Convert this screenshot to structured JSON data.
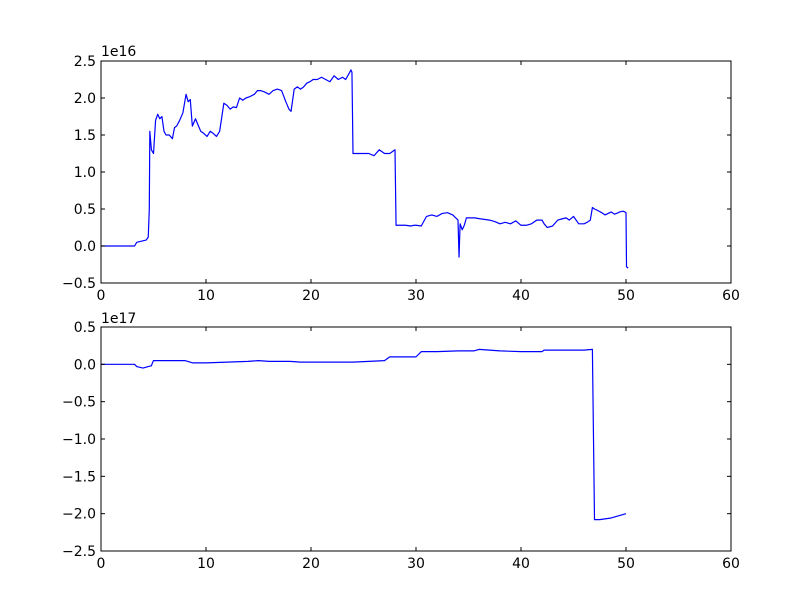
{
  "chart_data": [
    {
      "type": "line",
      "title": "",
      "xlabel": "",
      "ylabel": "",
      "offset_label": "1e16",
      "xlim": [
        0,
        60
      ],
      "ylim": [
        -0.5,
        2.5
      ],
      "x_ticks": [
        0,
        10,
        20,
        30,
        40,
        50,
        60
      ],
      "x_tick_labels": [
        "0",
        "10",
        "20",
        "30",
        "40",
        "50",
        "60"
      ],
      "y_ticks": [
        -0.5,
        0.0,
        0.5,
        1.0,
        1.5,
        2.0,
        2.5
      ],
      "y_tick_labels": [
        "−0.5",
        "0.0",
        "0.5",
        "1.0",
        "1.5",
        "2.0",
        "2.5"
      ],
      "grid": false,
      "series": [
        {
          "color": "#0000ff",
          "x": [
            0,
            3.2,
            3.4,
            4.0,
            4.3,
            4.5,
            4.6,
            4.65,
            4.8,
            5.0,
            5.2,
            5.4,
            5.6,
            5.8,
            6.0,
            6.2,
            6.5,
            6.8,
            7.0,
            7.2,
            7.5,
            7.8,
            8.1,
            8.3,
            8.5,
            8.7,
            9.0,
            9.2,
            9.5,
            9.8,
            10.1,
            10.4,
            10.7,
            11.0,
            11.3,
            11.7,
            12.0,
            12.3,
            12.6,
            12.9,
            13.2,
            13.5,
            13.8,
            14.2,
            14.6,
            14.9,
            15.2,
            15.6,
            16.0,
            16.4,
            16.8,
            17.2,
            17.6,
            17.9,
            18.1,
            18.4,
            18.7,
            19.0,
            19.3,
            19.6,
            19.9,
            20.2,
            20.6,
            21.0,
            21.4,
            21.8,
            22.2,
            22.6,
            23.0,
            23.3,
            23.5,
            23.7,
            23.8,
            23.9,
            24.0,
            24.1,
            25.0,
            25.5,
            26.0,
            26.5,
            27.0,
            27.5,
            27.8,
            28.0,
            28.1,
            28.5,
            29.0,
            29.5,
            29.8,
            30.0,
            30.5,
            31.0,
            31.5,
            32.0,
            32.5,
            33.0,
            33.5,
            34.0,
            34.1,
            34.2,
            34.4,
            34.6,
            34.8,
            35.0,
            35.3,
            35.6,
            36.0,
            36.5,
            37.0,
            37.5,
            38.0,
            38.5,
            39.0,
            39.5,
            40.0,
            40.5,
            41.0,
            41.5,
            42.0,
            42.2,
            42.5,
            43.0,
            43.5,
            44.0,
            44.3,
            44.6,
            45.0,
            45.5,
            46.0,
            46.3,
            46.6,
            46.8,
            47.0,
            47.3,
            47.7,
            48.0,
            48.3,
            48.6,
            48.9,
            49.1,
            49.4,
            49.7,
            49.9,
            50.0,
            50.05,
            50.2
          ],
          "y": [
            0.0,
            0.0,
            0.05,
            0.07,
            0.08,
            0.12,
            0.5,
            1.55,
            1.3,
            1.25,
            1.7,
            1.78,
            1.72,
            1.75,
            1.55,
            1.5,
            1.5,
            1.45,
            1.6,
            1.62,
            1.7,
            1.8,
            2.05,
            1.95,
            1.98,
            1.62,
            1.72,
            1.65,
            1.55,
            1.52,
            1.48,
            1.55,
            1.52,
            1.48,
            1.55,
            1.93,
            1.9,
            1.85,
            1.88,
            1.87,
            2.0,
            1.97,
            2.0,
            2.02,
            2.05,
            2.1,
            2.1,
            2.08,
            2.05,
            2.1,
            2.12,
            2.1,
            1.95,
            1.85,
            1.82,
            2.12,
            2.15,
            2.12,
            2.15,
            2.2,
            2.22,
            2.25,
            2.25,
            2.28,
            2.25,
            2.22,
            2.3,
            2.25,
            2.28,
            2.25,
            2.3,
            2.35,
            2.38,
            2.35,
            1.25,
            1.25,
            1.25,
            1.25,
            1.22,
            1.3,
            1.25,
            1.25,
            1.28,
            1.3,
            0.28,
            0.28,
            0.28,
            0.27,
            0.28,
            0.28,
            0.27,
            0.4,
            0.42,
            0.4,
            0.44,
            0.45,
            0.42,
            0.35,
            -0.15,
            0.3,
            0.22,
            0.28,
            0.38,
            0.38,
            0.38,
            0.38,
            0.37,
            0.36,
            0.35,
            0.33,
            0.3,
            0.32,
            0.3,
            0.34,
            0.28,
            0.28,
            0.3,
            0.35,
            0.35,
            0.3,
            0.25,
            0.27,
            0.35,
            0.37,
            0.38,
            0.35,
            0.4,
            0.3,
            0.3,
            0.32,
            0.35,
            0.52,
            0.5,
            0.48,
            0.45,
            0.42,
            0.44,
            0.46,
            0.43,
            0.44,
            0.46,
            0.47,
            0.46,
            0.45,
            -0.28,
            -0.3
          ]
        }
      ]
    },
    {
      "type": "line",
      "title": "",
      "xlabel": "",
      "ylabel": "",
      "offset_label": "1e17",
      "xlim": [
        0,
        60
      ],
      "ylim": [
        -2.5,
        0.5
      ],
      "x_ticks": [
        0,
        10,
        20,
        30,
        40,
        50,
        60
      ],
      "x_tick_labels": [
        "0",
        "10",
        "20",
        "30",
        "40",
        "50",
        "60"
      ],
      "y_ticks": [
        -2.5,
        -2.0,
        -1.5,
        -1.0,
        -0.5,
        0.0,
        0.5
      ],
      "y_tick_labels": [
        "−2.5",
        "−2.0",
        "−1.5",
        "−1.0",
        "−0.5",
        "0.0",
        "0.5"
      ],
      "grid": false,
      "series": [
        {
          "color": "#0000ff",
          "x": [
            0,
            3.2,
            3.4,
            4.0,
            4.5,
            4.8,
            4.9,
            5.0,
            6.0,
            8.0,
            8.7,
            8.8,
            10.0,
            12.0,
            14.0,
            15.0,
            16.0,
            18.0,
            19.0,
            20.0,
            22.0,
            24.0,
            27.0,
            27.5,
            29.0,
            30.0,
            30.5,
            32.0,
            34.0,
            35.5,
            36.0,
            38.0,
            40.0,
            42.0,
            42.2,
            44.0,
            46.0,
            46.8,
            47.0,
            47.5,
            48.0,
            48.5,
            49.0,
            49.5,
            50.0
          ],
          "y": [
            0.0,
            0.0,
            -0.03,
            -0.05,
            -0.03,
            -0.02,
            0.02,
            0.05,
            0.05,
            0.05,
            0.02,
            0.02,
            0.02,
            0.03,
            0.04,
            0.05,
            0.04,
            0.04,
            0.03,
            0.03,
            0.03,
            0.03,
            0.05,
            0.1,
            0.1,
            0.1,
            0.17,
            0.17,
            0.18,
            0.18,
            0.2,
            0.18,
            0.17,
            0.17,
            0.19,
            0.19,
            0.19,
            0.2,
            -2.08,
            -2.08,
            -2.07,
            -2.06,
            -2.04,
            -2.02,
            -2.0
          ]
        }
      ]
    }
  ]
}
